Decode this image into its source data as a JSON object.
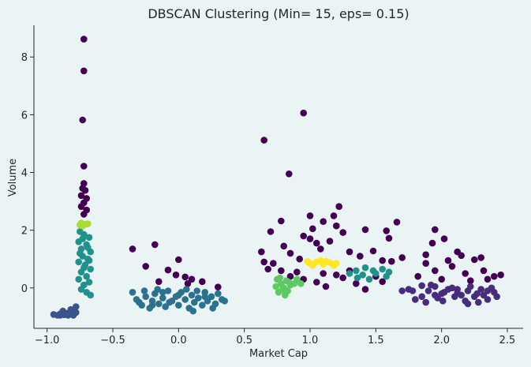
{
  "chart_data": {
    "type": "scatter",
    "title": "DBSCAN Clustering (Min= 15, eps= 0.15)",
    "xlabel": "Market Cap",
    "ylabel": "Volume",
    "xlim": [
      -1.1,
      2.62
    ],
    "ylim": [
      -1.4,
      9.1
    ],
    "xticks": [
      -1.0,
      -0.5,
      0.0,
      0.5,
      1.0,
      1.5,
      2.0,
      2.5
    ],
    "xtick_labels": [
      "−1.0",
      "−0.5",
      "0.0",
      "0.5",
      "1.0",
      "1.5",
      "2.0",
      "2.5"
    ],
    "yticks": [
      0,
      2,
      4,
      6,
      8
    ],
    "ytick_labels": [
      "0",
      "2",
      "4",
      "6",
      "8"
    ],
    "grid": false,
    "colormap": "viridis",
    "clusters": [
      {
        "label": -1,
        "color": "#440154",
        "points": [
          [
            -0.72,
            8.62
          ],
          [
            -0.72,
            7.52
          ],
          [
            -0.73,
            5.82
          ],
          [
            -0.72,
            4.22
          ],
          [
            -0.72,
            3.62
          ],
          [
            -0.73,
            3.45
          ],
          [
            -0.71,
            3.38
          ],
          [
            -0.74,
            3.2
          ],
          [
            -0.7,
            3.1
          ],
          [
            -0.72,
            2.95
          ],
          [
            -0.74,
            2.82
          ],
          [
            -0.7,
            2.7
          ],
          [
            -0.72,
            2.55
          ],
          [
            0.95,
            6.06
          ],
          [
            0.65,
            5.12
          ],
          [
            0.84,
            3.95
          ],
          [
            -0.35,
            1.35
          ],
          [
            -0.18,
            1.5
          ],
          [
            -0.25,
            0.75
          ],
          [
            0.0,
            0.98
          ],
          [
            -0.08,
            0.62
          ],
          [
            -0.02,
            0.45
          ],
          [
            0.05,
            0.38
          ],
          [
            0.1,
            0.3
          ],
          [
            0.18,
            0.22
          ],
          [
            0.3,
            0.03
          ],
          [
            -0.15,
            0.22
          ],
          [
            0.07,
            0.15
          ],
          [
            1.22,
            2.82
          ],
          [
            1.0,
            2.5
          ],
          [
            1.18,
            2.5
          ],
          [
            1.1,
            2.3
          ],
          [
            1.2,
            2.15
          ],
          [
            1.02,
            2.05
          ],
          [
            0.78,
            2.32
          ],
          [
            0.7,
            1.95
          ],
          [
            0.95,
            1.8
          ],
          [
            1.0,
            1.7
          ],
          [
            1.05,
            1.55
          ],
          [
            1.15,
            1.62
          ],
          [
            1.25,
            1.92
          ],
          [
            1.42,
            2.02
          ],
          [
            1.58,
            1.98
          ],
          [
            1.66,
            2.28
          ],
          [
            1.6,
            1.72
          ],
          [
            0.63,
            1.25
          ],
          [
            0.85,
            1.2
          ],
          [
            0.92,
            1.0
          ],
          [
            1.08,
            1.35
          ],
          [
            1.3,
            1.25
          ],
          [
            1.38,
            1.1
          ],
          [
            1.48,
            1.28
          ],
          [
            1.55,
            0.95
          ],
          [
            1.62,
            0.92
          ],
          [
            1.7,
            1.05
          ],
          [
            0.9,
            0.55
          ],
          [
            0.95,
            0.3
          ],
          [
            1.1,
            0.5
          ],
          [
            1.05,
            0.2
          ],
          [
            1.2,
            0.45
          ],
          [
            1.25,
            0.35
          ],
          [
            1.35,
            0.15
          ],
          [
            1.42,
            -0.05
          ],
          [
            1.5,
            0.4
          ],
          [
            1.55,
            0.22
          ],
          [
            0.68,
            0.65
          ],
          [
            0.72,
            0.85
          ],
          [
            0.78,
            0.6
          ],
          [
            0.85,
            0.4
          ],
          [
            0.65,
            0.9
          ],
          [
            0.8,
            1.45
          ],
          [
            1.12,
            0.05
          ],
          [
            1.3,
            0.6
          ],
          [
            1.95,
            2.02
          ],
          [
            2.02,
            1.7
          ],
          [
            1.93,
            1.55
          ],
          [
            2.12,
            1.25
          ],
          [
            1.88,
            1.15
          ],
          [
            2.05,
            0.95
          ],
          [
            2.15,
            1.12
          ],
          [
            1.95,
            0.6
          ],
          [
            2.08,
            0.75
          ],
          [
            2.25,
            0.98
          ],
          [
            2.3,
            1.05
          ],
          [
            2.18,
            0.5
          ],
          [
            2.32,
            0.6
          ],
          [
            1.82,
            0.4
          ],
          [
            2.0,
            0.3
          ],
          [
            2.4,
            0.4
          ],
          [
            2.45,
            0.45
          ],
          [
            2.22,
            0.25
          ],
          [
            1.88,
            0.85
          ],
          [
            2.35,
            0.3
          ]
        ]
      },
      {
        "label": 0,
        "color": "#472d7b",
        "points": [
          [
            1.85,
            -0.3
          ],
          [
            1.9,
            -0.1
          ],
          [
            1.95,
            0.05
          ],
          [
            2.0,
            -0.2
          ],
          [
            2.05,
            -0.05
          ],
          [
            2.1,
            -0.3
          ],
          [
            1.8,
            -0.4
          ],
          [
            1.88,
            -0.5
          ],
          [
            1.97,
            -0.35
          ],
          [
            2.02,
            -0.15
          ],
          [
            1.92,
            0.1
          ],
          [
            2.08,
            0.0
          ],
          [
            1.78,
            -0.1
          ],
          [
            1.95,
            -0.25
          ],
          [
            2.12,
            -0.18
          ],
          [
            1.85,
            0.08
          ],
          [
            1.75,
            -0.05
          ],
          [
            2.2,
            -0.1
          ],
          [
            2.25,
            -0.3
          ],
          [
            2.3,
            -0.05
          ],
          [
            2.35,
            -0.4
          ],
          [
            2.4,
            -0.15
          ],
          [
            2.28,
            -0.5
          ],
          [
            2.18,
            -0.45
          ],
          [
            2.22,
            0.05
          ],
          [
            2.32,
            -0.25
          ],
          [
            2.38,
            0.0
          ],
          [
            2.15,
            -0.25
          ],
          [
            2.42,
            -0.3
          ],
          [
            2.27,
            -0.2
          ],
          [
            2.2,
            -0.55
          ],
          [
            2.35,
            -0.1
          ],
          [
            1.7,
            -0.1
          ],
          [
            2.01,
            -0.45
          ],
          [
            2.12,
            -0.05
          ]
        ]
      },
      {
        "label": 1,
        "color": "#3b528b",
        "points": [
          [
            -0.95,
            -0.92
          ],
          [
            -0.9,
            -0.9
          ],
          [
            -0.85,
            -0.88
          ],
          [
            -0.8,
            -0.85
          ],
          [
            -0.92,
            -0.95
          ],
          [
            -0.87,
            -0.93
          ],
          [
            -0.82,
            -0.9
          ],
          [
            -0.78,
            -0.85
          ],
          [
            -0.88,
            -0.8
          ],
          [
            -0.82,
            -0.75
          ],
          [
            -0.78,
            -0.65
          ],
          [
            -0.84,
            -0.95
          ],
          [
            -0.9,
            -0.95
          ],
          [
            -0.8,
            -0.95
          ]
        ]
      },
      {
        "label": 2,
        "color": "#2c728e",
        "points": [
          [
            -0.35,
            -0.15
          ],
          [
            -0.32,
            -0.4
          ],
          [
            -0.28,
            -0.6
          ],
          [
            -0.25,
            -0.3
          ],
          [
            -0.22,
            -0.7
          ],
          [
            -0.2,
            -0.45
          ],
          [
            -0.18,
            -0.2
          ],
          [
            -0.15,
            -0.55
          ],
          [
            -0.12,
            -0.35
          ],
          [
            -0.1,
            -0.65
          ],
          [
            -0.08,
            -0.1
          ],
          [
            -0.05,
            -0.45
          ],
          [
            -0.02,
            -0.3
          ],
          [
            0.0,
            -0.6
          ],
          [
            0.02,
            -0.15
          ],
          [
            0.05,
            -0.4
          ],
          [
            0.08,
            -0.7
          ],
          [
            0.1,
            -0.25
          ],
          [
            0.12,
            -0.5
          ],
          [
            0.15,
            -0.35
          ],
          [
            0.18,
            -0.6
          ],
          [
            0.2,
            -0.15
          ],
          [
            0.22,
            -0.45
          ],
          [
            0.25,
            -0.3
          ],
          [
            0.28,
            -0.55
          ],
          [
            0.3,
            -0.2
          ],
          [
            0.33,
            -0.4
          ],
          [
            0.35,
            -0.45
          ],
          [
            -0.26,
            -0.1
          ],
          [
            -0.16,
            -0.05
          ],
          [
            0.06,
            -0.05
          ],
          [
            0.14,
            -0.1
          ],
          [
            -0.3,
            -0.5
          ],
          [
            0.0,
            -0.25
          ],
          [
            0.2,
            -0.3
          ],
          [
            -0.07,
            -0.5
          ],
          [
            0.11,
            -0.8
          ],
          [
            -0.2,
            -0.6
          ],
          [
            0.26,
            -0.7
          ],
          [
            -0.12,
            -0.15
          ]
        ]
      },
      {
        "label": 3,
        "color": "#21918c",
        "points": [
          [
            -0.75,
            1.95
          ],
          [
            -0.72,
            1.85
          ],
          [
            -0.68,
            1.75
          ],
          [
            -0.76,
            1.6
          ],
          [
            -0.7,
            1.5
          ],
          [
            -0.74,
            1.35
          ],
          [
            -0.67,
            1.25
          ],
          [
            -0.73,
            1.1
          ],
          [
            -0.69,
            1.0
          ],
          [
            -0.76,
            0.9
          ],
          [
            -0.71,
            0.8
          ],
          [
            -0.67,
            0.65
          ],
          [
            -0.74,
            0.55
          ],
          [
            -0.7,
            0.4
          ],
          [
            -0.76,
            0.3
          ],
          [
            -0.68,
            0.2
          ],
          [
            -0.72,
            0.1
          ],
          [
            -0.74,
            -0.05
          ],
          [
            -0.7,
            -0.15
          ],
          [
            -0.67,
            -0.25
          ],
          [
            -0.73,
            1.7
          ],
          [
            -0.69,
            1.4
          ],
          [
            -0.72,
            0.7
          ],
          [
            -0.68,
            0.95
          ],
          [
            -0.75,
            1.2
          ],
          [
            1.3,
            0.5
          ],
          [
            1.35,
            0.6
          ],
          [
            1.4,
            0.45
          ],
          [
            1.45,
            0.3
          ],
          [
            1.5,
            0.5
          ],
          [
            1.55,
            0.65
          ],
          [
            1.58,
            0.4
          ],
          [
            1.42,
            0.7
          ],
          [
            1.36,
            0.35
          ],
          [
            1.48,
            0.6
          ],
          [
            1.6,
            0.55
          ]
        ]
      },
      {
        "label": 4,
        "color": "#5ec962",
        "points": [
          [
            0.75,
            0.3
          ],
          [
            0.78,
            0.15
          ],
          [
            0.8,
            0.0
          ],
          [
            0.76,
            -0.15
          ],
          [
            0.82,
            0.25
          ],
          [
            0.85,
            0.1
          ],
          [
            0.79,
            -0.05
          ],
          [
            0.77,
            0.35
          ],
          [
            0.84,
            0.2
          ],
          [
            0.81,
            -0.25
          ],
          [
            0.88,
            0.15
          ],
          [
            0.9,
            0.3
          ],
          [
            0.74,
            0.05
          ],
          [
            0.83,
            -0.1
          ],
          [
            0.93,
            0.15
          ]
        ]
      },
      {
        "label": 5,
        "color": "#addc30",
        "points": [
          [
            -0.74,
            2.25
          ],
          [
            -0.71,
            2.2
          ],
          [
            -0.73,
            2.15
          ],
          [
            -0.69,
            2.22
          ],
          [
            -0.75,
            2.18
          ]
        ]
      },
      {
        "label": 6,
        "color": "#fde725",
        "points": [
          [
            1.0,
            0.85
          ],
          [
            1.05,
            0.9
          ],
          [
            1.1,
            0.82
          ],
          [
            1.15,
            0.88
          ],
          [
            1.2,
            0.85
          ],
          [
            1.08,
            0.95
          ],
          [
            1.02,
            0.78
          ],
          [
            1.12,
            0.92
          ],
          [
            1.18,
            0.78
          ],
          [
            0.98,
            0.92
          ]
        ]
      }
    ]
  }
}
